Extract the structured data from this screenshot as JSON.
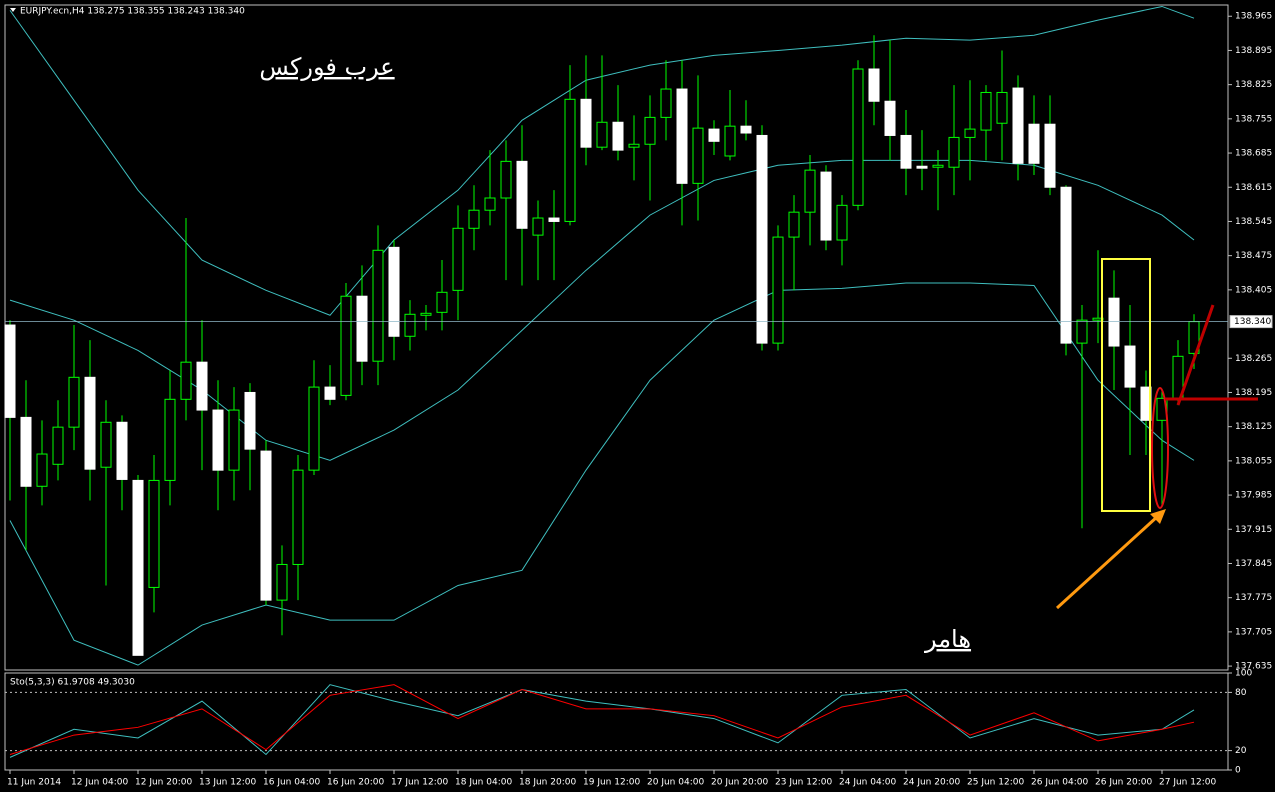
{
  "chart_data": [
    {
      "type": "candlestick",
      "title": "EURJPY.ecn,H4  138.275 138.355 138.243 138.340",
      "categories": [
        "11 Jun 2014",
        null,
        null,
        null,
        "12 Jun 04:00",
        null,
        null,
        null,
        "12 Jun 20:00",
        null,
        null,
        null,
        "13 Jun 12:00",
        null,
        null,
        null,
        "16 Jun 04:00",
        null,
        null,
        null,
        "16 Jun 20:00",
        null,
        null,
        null,
        "17 Jun 12:00",
        null,
        null,
        null,
        "18 Jun 04:00",
        null,
        null,
        null,
        "18 Jun 20:00",
        null,
        null,
        null,
        "19 Jun 12:00",
        null,
        null,
        null,
        "20 Jun 04:00",
        null,
        null,
        null,
        "20 Jun 20:00",
        null,
        null,
        null,
        "23 Jun 12:00",
        null,
        null,
        null,
        "24 Jun 04:00",
        null,
        null,
        null,
        "24 Jun 20:00",
        null,
        null,
        null,
        "25 Jun 12:00",
        null,
        null,
        null,
        "26 Jun 04:00",
        null,
        null,
        null,
        "26 Jun 20:00",
        null,
        null,
        null,
        "27 Jun 12:00",
        null,
        null
      ],
      "open": [
        138.333,
        138.144,
        138.003,
        138.048,
        138.124,
        138.226,
        138.042,
        138.134,
        138.015,
        137.796,
        138.015,
        138.181,
        138.257,
        138.159,
        138.036,
        138.195,
        138.075,
        137.77,
        137.843,
        138.036,
        138.206,
        138.189,
        138.392,
        138.259,
        138.492,
        138.31,
        138.353,
        138.359,
        138.404,
        138.531,
        138.568,
        138.593,
        138.668,
        138.517,
        138.552,
        138.545,
        138.795,
        138.697,
        138.748,
        138.697,
        138.703,
        138.758,
        138.816,
        138.623,
        138.734,
        138.679,
        138.74,
        138.721,
        138.296,
        138.513,
        138.564,
        138.646,
        138.507,
        138.578,
        138.857,
        138.791,
        138.721,
        138.658,
        138.656,
        138.656,
        138.717,
        138.732,
        138.746,
        138.818,
        138.744,
        138.744,
        138.615,
        138.296,
        138.343,
        138.388,
        138.29,
        138.206,
        138.138,
        138.183,
        138.275
      ],
      "high": [
        138.343,
        138.22,
        138.138,
        138.179,
        138.333,
        138.302,
        138.179,
        138.148,
        138.026,
        138.067,
        138.24,
        138.552,
        138.343,
        138.22,
        138.206,
        138.214,
        138.097,
        137.882,
        138.067,
        138.261,
        138.251,
        138.419,
        138.455,
        138.537,
        138.507,
        138.384,
        138.374,
        138.466,
        138.578,
        138.619,
        138.691,
        138.711,
        138.742,
        138.588,
        138.609,
        138.865,
        138.885,
        138.885,
        138.824,
        138.762,
        138.803,
        138.875,
        138.875,
        138.844,
        138.752,
        138.814,
        138.793,
        138.742,
        138.537,
        138.599,
        138.681,
        138.66,
        138.599,
        138.875,
        138.926,
        138.916,
        138.773,
        138.732,
        138.691,
        138.824,
        138.834,
        138.824,
        138.895,
        138.844,
        138.803,
        138.803,
        138.619,
        138.374,
        138.486,
        138.445,
        138.374,
        138.24,
        138.2,
        138.302,
        138.355
      ],
      "low": [
        137.974,
        137.872,
        137.964,
        138.015,
        138.077,
        137.974,
        137.8,
        137.954,
        137.657,
        137.745,
        137.964,
        138.138,
        138.036,
        137.954,
        137.974,
        137.995,
        137.76,
        137.698,
        137.77,
        138.026,
        138.169,
        138.179,
        138.21,
        138.21,
        138.261,
        138.281,
        138.322,
        138.322,
        138.343,
        138.486,
        138.537,
        138.425,
        138.414,
        138.425,
        138.425,
        138.537,
        138.66,
        138.691,
        138.67,
        138.629,
        138.588,
        138.711,
        138.537,
        138.547,
        138.681,
        138.67,
        138.711,
        138.281,
        138.281,
        138.404,
        138.496,
        138.486,
        138.455,
        138.568,
        138.742,
        138.67,
        138.599,
        138.609,
        138.568,
        138.599,
        138.629,
        138.67,
        138.67,
        138.629,
        138.64,
        138.599,
        138.271,
        137.917,
        138.296,
        138.2,
        138.067,
        138.067,
        137.964,
        138.169,
        138.243
      ],
      "close": [
        138.144,
        138.003,
        138.069,
        138.124,
        138.226,
        138.038,
        138.134,
        138.017,
        137.657,
        138.015,
        138.181,
        138.257,
        138.159,
        138.036,
        138.159,
        138.079,
        137.77,
        137.843,
        138.036,
        138.206,
        138.181,
        138.392,
        138.259,
        138.486,
        138.31,
        138.355,
        138.357,
        138.4,
        138.531,
        138.568,
        138.593,
        138.668,
        138.531,
        138.552,
        138.545,
        138.795,
        138.697,
        138.748,
        138.691,
        138.703,
        138.758,
        138.816,
        138.623,
        138.736,
        138.709,
        138.74,
        138.726,
        138.296,
        138.513,
        138.564,
        138.65,
        138.507,
        138.578,
        138.857,
        138.791,
        138.721,
        138.654,
        138.654,
        138.66,
        138.717,
        138.734,
        138.809,
        138.809,
        138.664,
        138.664,
        138.615,
        138.296,
        138.343,
        138.347,
        138.29,
        138.206,
        138.138,
        138.183,
        138.269,
        138.34
      ],
      "up_color": "#000000",
      "down_color": "#ffffff",
      "wick_color": "#00ff00",
      "ylim": [
        137.627,
        138.988
      ],
      "yticks": [
        138.965,
        138.895,
        138.825,
        138.755,
        138.685,
        138.615,
        138.545,
        138.475,
        138.405,
        138.265,
        138.195,
        138.125,
        138.055,
        137.985,
        137.915,
        137.845,
        137.775,
        137.705,
        137.635
      ],
      "last_price": {
        "value": 138.34,
        "label": "138.340"
      },
      "bands": {
        "color": "#3fbfbf",
        "x": [
          0,
          4,
          8,
          12,
          16,
          20,
          24,
          28,
          32,
          36,
          40,
          44,
          48,
          52,
          56,
          60,
          64,
          68,
          72,
          74
        ],
        "series": [
          {
            "values": [
              138.977,
              138.793,
              138.609,
              138.466,
              138.404,
              138.353,
              138.507,
              138.609,
              138.752,
              138.834,
              138.865,
              138.885,
              138.895,
              138.906,
              138.92,
              138.916,
              138.926,
              138.957,
              138.985,
              138.961
            ]
          },
          {
            "values": [
              138.384,
              138.343,
              138.281,
              138.2,
              138.097,
              138.056,
              138.118,
              138.2,
              138.322,
              138.445,
              138.558,
              138.629,
              138.66,
              138.67,
              138.67,
              138.67,
              138.66,
              138.619,
              138.558,
              138.507
            ]
          },
          {
            "values": [
              137.933,
              137.688,
              137.637,
              137.719,
              137.76,
              137.729,
              137.729,
              137.8,
              137.831,
              138.036,
              138.22,
              138.343,
              138.404,
              138.408,
              138.419,
              138.419,
              138.414,
              138.22,
              138.097,
              138.056
            ]
          }
        ]
      },
      "annotations": [
        "عرب فوركس",
        "هامر"
      ]
    },
    {
      "type": "line",
      "title": "Sto(5,3,3) 61.9708 49.3030",
      "x": [
        0,
        4,
        8,
        12,
        16,
        20,
        24,
        28,
        32,
        36,
        40,
        44,
        48,
        52,
        56,
        60,
        64,
        68,
        72,
        74
      ],
      "series": [
        {
          "color": "#3fbfbf",
          "values": [
            13,
            42,
            33,
            71,
            16,
            88,
            71,
            56,
            83,
            71,
            63,
            53,
            28,
            77,
            83,
            33,
            53,
            36,
            42,
            61.9708
          ]
        },
        {
          "color": "#ff0000",
          "values": [
            16,
            36,
            44,
            63,
            21,
            77,
            88,
            53,
            83,
            63,
            63,
            56,
            33,
            65,
            77,
            36,
            59,
            30,
            42,
            49.303
          ]
        }
      ],
      "ylim": [
        0,
        100
      ],
      "yticks": [
        0,
        20,
        80,
        100
      ],
      "levels": [
        20,
        80
      ]
    }
  ]
}
